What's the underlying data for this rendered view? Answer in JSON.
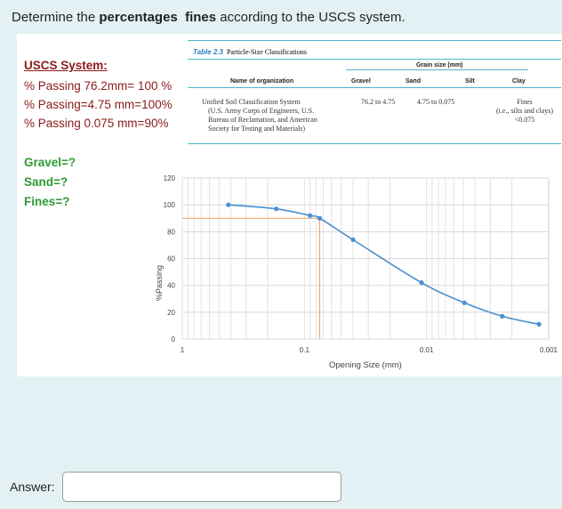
{
  "question": {
    "prefix": "Determine the ",
    "bold1": "percentages",
    "bold2": "fines",
    "suffix": " according to the USCS system."
  },
  "given": {
    "heading": "USCS System:",
    "lines": [
      "% Passing 76.2mm= 100 %",
      "% Passing=4.75 mm=100%",
      "% Passing 0.075 mm=90%"
    ]
  },
  "unknowns": [
    "Gravel=?",
    "Sand=?",
    "Fines=?"
  ],
  "table": {
    "caption_num": "Table 2.3",
    "caption_text": "Particle-Size Classifications",
    "col_org": "Name of organization",
    "col_grain": "Grain size (mm)",
    "col_gravel": "Gravel",
    "col_sand": "Sand",
    "col_silt": "Silt",
    "col_clay": "Clay",
    "org_lines": [
      "Unified Soil Classification System",
      "(U.S. Army Corps of Engineers, U.S.",
      "Bureau of Reclamation, and American",
      "Society for Testing and Materials)"
    ],
    "gravel_val": "76.2 to 4.75",
    "sand_val": "4.75 to 0.075",
    "fines_lines": [
      "Fines",
      "(i.e., silts and clays)",
      "<0.075"
    ]
  },
  "chart_data": {
    "type": "line",
    "xscale": "log",
    "xreversed": true,
    "xlim": [
      1,
      0.001
    ],
    "ylim": [
      0,
      120
    ],
    "xticks": [
      "1",
      "0.1",
      "0.01",
      "0.001"
    ],
    "yticks": [
      "0",
      "20",
      "40",
      "60",
      "80",
      "100",
      "120"
    ],
    "xlabel": "Opening Size (mm)",
    "ylabel": "%Passing",
    "grid": true,
    "color": "#4a90d0",
    "guide_color": "#f0a060",
    "guide": {
      "x": 0.075,
      "y": 90
    },
    "series": [
      {
        "x": [
          0.42,
          0.17,
          0.09,
          0.075,
          0.04,
          0.011,
          0.0049,
          0.0024,
          0.0012
        ],
        "y": [
          100,
          97,
          92,
          90,
          74,
          42,
          27,
          17,
          11
        ]
      }
    ]
  },
  "answer": {
    "label": "Answer:",
    "value": "",
    "placeholder": ""
  }
}
